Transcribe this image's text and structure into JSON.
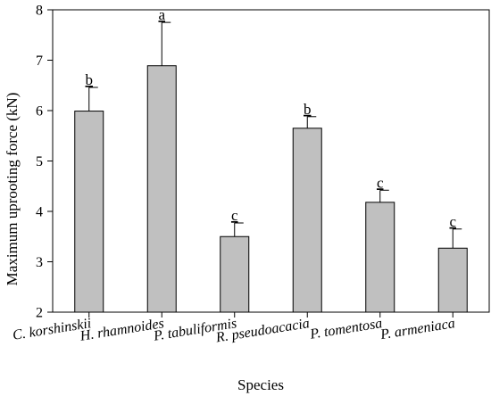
{
  "chart_data": {
    "type": "bar",
    "categories": [
      "C. korshinskii",
      "H. rhamnoides",
      "P. tabuliformis",
      "R. pseudoacacia",
      "P. tomentosa",
      "P. armeniaca"
    ],
    "values": [
      5.99,
      6.89,
      3.5,
      5.65,
      4.18,
      3.27
    ],
    "error": [
      0.47,
      0.86,
      0.27,
      0.23,
      0.24,
      0.38
    ],
    "significance": [
      "b",
      "a",
      "c",
      "b",
      "c",
      "c"
    ],
    "xlabel": "Species",
    "ylabel": "Maximum uprooting force (kN)",
    "ylim": [
      2,
      8
    ],
    "yticks": [
      2,
      3,
      4,
      5,
      6,
      7,
      8
    ],
    "grid": false,
    "colors": {
      "bar": "#c0c0c0",
      "stroke": "#000000"
    }
  }
}
